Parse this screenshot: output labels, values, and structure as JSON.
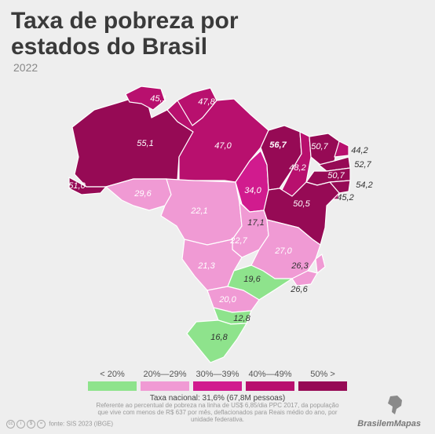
{
  "title": "Taxa de pobreza por estados do Brasil",
  "year": "2022",
  "colors": {
    "lt20": "#8ee38c",
    "c20_29": "#f09ad4",
    "c30_39": "#d11b8e",
    "c40_49": "#b8106e",
    "ge50": "#960a55"
  },
  "legend": [
    {
      "label": "< 20%",
      "color": "#8ee38c"
    },
    {
      "label": "20%—29%",
      "color": "#f09ad4"
    },
    {
      "label": "30%—39%",
      "color": "#d11b8e"
    },
    {
      "label": "40%—49%",
      "color": "#b8106e"
    },
    {
      "label": "50% >",
      "color": "#960a55"
    }
  ],
  "states": [
    {
      "name": "Amazonas",
      "value": "55,1",
      "fill": "#960a55"
    },
    {
      "name": "Acre",
      "value": "51,0",
      "fill": "#960a55"
    },
    {
      "name": "Roraima",
      "value": "45,1",
      "fill": "#b8106e"
    },
    {
      "name": "Amapá",
      "value": "47,8",
      "fill": "#b8106e"
    },
    {
      "name": "Pará",
      "value": "47,0",
      "fill": "#b8106e"
    },
    {
      "name": "Rondônia",
      "value": "29,6",
      "fill": "#f09ad4"
    },
    {
      "name": "Mato Grosso",
      "value": "22,1",
      "fill": "#f09ad4"
    },
    {
      "name": "Tocantins",
      "value": "34,0",
      "fill": "#d11b8e"
    },
    {
      "name": "Maranhão",
      "value": "56,7",
      "fill": "#960a55"
    },
    {
      "name": "Piauí",
      "value": "48,2",
      "fill": "#b8106e"
    },
    {
      "name": "Ceará",
      "value": "50,7",
      "fill": "#960a55"
    },
    {
      "name": "Rio Grande do Norte",
      "value": "44,2",
      "fill": "#b8106e"
    },
    {
      "name": "Paraíba",
      "value": "52,7",
      "fill": "#960a55"
    },
    {
      "name": "Pernambuco",
      "value": "50,7",
      "fill": "#960a55"
    },
    {
      "name": "Alagoas",
      "value": "54,2",
      "fill": "#960a55"
    },
    {
      "name": "Sergipe",
      "value": "45,2",
      "fill": "#b8106e"
    },
    {
      "name": "Bahia",
      "value": "50,5",
      "fill": "#960a55"
    },
    {
      "name": "Distrito Federal",
      "value": "17,1",
      "fill": "#8ee38c"
    },
    {
      "name": "Goiás",
      "value": "22,7",
      "fill": "#f09ad4"
    },
    {
      "name": "Minas Gerais",
      "value": "27,0",
      "fill": "#f09ad4"
    },
    {
      "name": "Espírito Santo",
      "value": "26,3",
      "fill": "#f09ad4"
    },
    {
      "name": "Rio de Janeiro",
      "value": "26,6",
      "fill": "#f09ad4"
    },
    {
      "name": "Mato Grosso do Sul",
      "value": "21,3",
      "fill": "#f09ad4"
    },
    {
      "name": "São Paulo",
      "value": "19,6",
      "fill": "#8ee38c"
    },
    {
      "name": "Paraná",
      "value": "20,0",
      "fill": "#f09ad4"
    },
    {
      "name": "Santa Catarina",
      "value": "12,8",
      "fill": "#8ee38c"
    },
    {
      "name": "Rio Grande do Sul",
      "value": "16,8",
      "fill": "#8ee38c"
    }
  ],
  "national": "Taxa nacional: 31,6% (67,8M pessoas)",
  "note": "Referente ao percentual de pobreza na linha de US$ 6,85/dia PPC 2017, da população que vive com menos de R$ 637 por mês, deflacionados para Reais médio do ano, por unidade federativa.",
  "source": "fonte: SIS 2023 (IBGE)",
  "brand": "BrasilemMapas"
}
